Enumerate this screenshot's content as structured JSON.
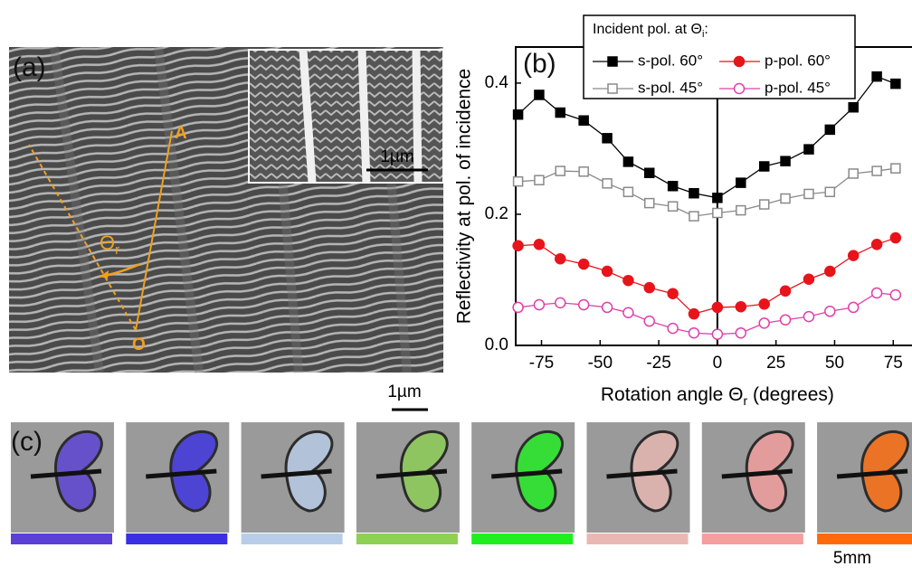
{
  "panel_a": {
    "label": "(a)",
    "point_a": "A",
    "point_o": "O",
    "angle": "Θ",
    "angle_sub": "r",
    "inset_scale": "1µm",
    "scale": "1µm"
  },
  "panel_c": {
    "label": "(c)",
    "scale": "5mm",
    "swatches": [
      "#5b3fd6",
      "#3a2fe2",
      "#b8cde8",
      "#8dd052",
      "#1fee1f",
      "#eab8b2",
      "#f69d9d",
      "#ff6a0a"
    ]
  },
  "chart_data": {
    "type": "line",
    "panel_label": "(b)",
    "legend_title": [
      "Incident pol. at Θ",
      "i",
      ":"
    ],
    "xlabel": [
      "Rotation angle Θ",
      "r",
      " (degrees)"
    ],
    "ylabel": "Reflectivity at pol. of incidence",
    "x": [
      -85,
      -76,
      -67,
      -57,
      -47,
      -38,
      -29,
      -19,
      -10,
      0,
      10,
      20,
      29,
      39,
      48,
      58,
      68,
      76
    ],
    "series": [
      {
        "name": "s-pol. 60°",
        "color": "#000000",
        "marker": "square",
        "filled": true,
        "values": [
          0.352,
          0.382,
          0.355,
          0.343,
          0.316,
          0.28,
          0.263,
          0.243,
          0.232,
          0.225,
          0.248,
          0.273,
          0.281,
          0.299,
          0.329,
          0.363,
          0.41,
          0.399
        ]
      },
      {
        "name": "p-pol. 60°",
        "color": "#e8141b",
        "marker": "circle",
        "filled": true,
        "values": [
          0.152,
          0.154,
          0.132,
          0.124,
          0.113,
          0.099,
          0.088,
          0.079,
          0.048,
          0.058,
          0.059,
          0.063,
          0.083,
          0.101,
          0.113,
          0.137,
          0.154,
          0.164
        ]
      },
      {
        "name": "s-pol. 45°",
        "color": "#8a8a8a",
        "marker": "square",
        "filled": false,
        "values": [
          0.25,
          0.252,
          0.266,
          0.265,
          0.247,
          0.234,
          0.217,
          0.212,
          0.197,
          0.202,
          0.206,
          0.215,
          0.224,
          0.231,
          0.234,
          0.262,
          0.266,
          0.27
        ]
      },
      {
        "name": "p-pol. 45°",
        "color": "#e040a8",
        "marker": "circle",
        "filled": false,
        "values": [
          0.058,
          0.062,
          0.065,
          0.062,
          0.058,
          0.05,
          0.037,
          0.026,
          0.019,
          0.017,
          0.019,
          0.034,
          0.039,
          0.044,
          0.052,
          0.058,
          0.08,
          0.077
        ]
      }
    ],
    "xlim": [
      -86,
      83
    ],
    "ylim": [
      0,
      0.455
    ],
    "xticks": [
      -75,
      -50,
      -25,
      0,
      25,
      50,
      75
    ],
    "yticks": [
      {
        "value": 0,
        "label": "0.0"
      },
      0.2,
      0.4
    ],
    "zero_line": true,
    "grid": false
  }
}
